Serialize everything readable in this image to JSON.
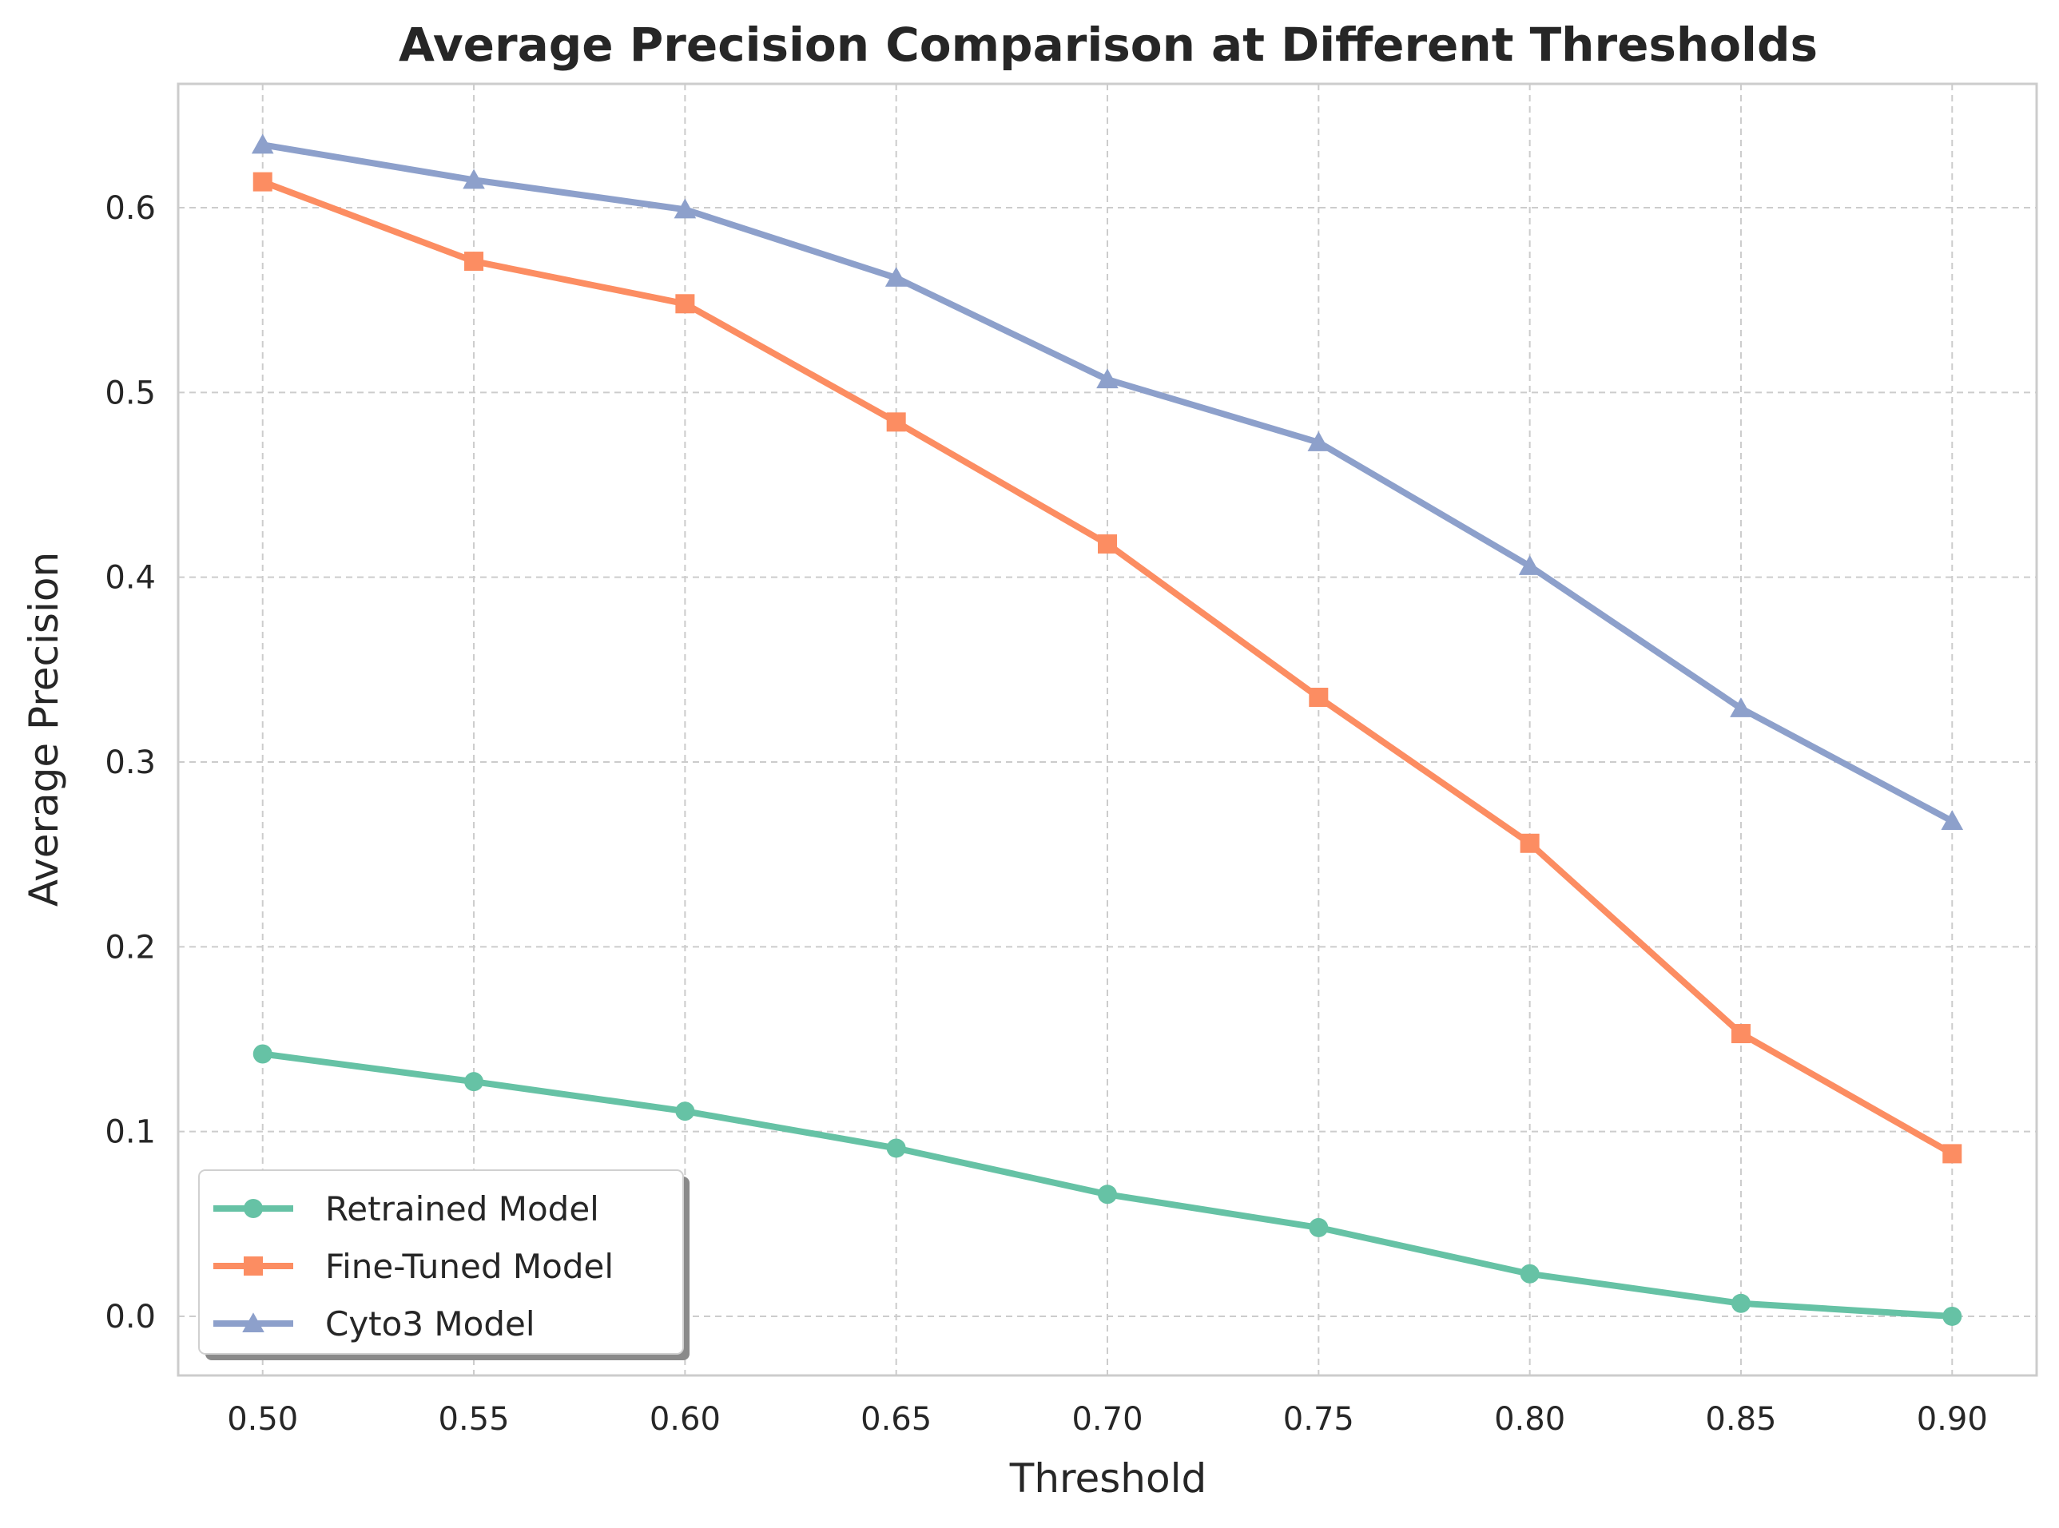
{
  "chart_data": {
    "type": "line",
    "title": "Average Precision Comparison at Different Thresholds",
    "xlabel": "Threshold",
    "ylabel": "Average Precision",
    "x": [
      0.5,
      0.55,
      0.6,
      0.65,
      0.7,
      0.75,
      0.8,
      0.85,
      0.9
    ],
    "xticks": [
      "0.50",
      "0.55",
      "0.60",
      "0.65",
      "0.70",
      "0.75",
      "0.80",
      "0.85",
      "0.90"
    ],
    "yticks": [
      "0.0",
      "0.1",
      "0.2",
      "0.3",
      "0.4",
      "0.5",
      "0.6"
    ],
    "xlim": [
      0.48,
      0.92
    ],
    "ylim": [
      -0.032,
      0.667
    ],
    "grid": true,
    "legend_position": "lower-left",
    "series": [
      {
        "name": "Retrained Model",
        "color": "#66c2a5",
        "marker": "circle",
        "values": [
          0.142,
          0.127,
          0.111,
          0.091,
          0.066,
          0.048,
          0.023,
          0.007,
          0.0
        ]
      },
      {
        "name": "Fine-Tuned Model",
        "color": "#fc8d62",
        "marker": "square",
        "values": [
          0.614,
          0.571,
          0.548,
          0.484,
          0.418,
          0.335,
          0.256,
          0.153,
          0.088
        ]
      },
      {
        "name": "Cyto3 Model",
        "color": "#8da0cb",
        "marker": "triangle",
        "values": [
          0.634,
          0.615,
          0.599,
          0.562,
          0.507,
          0.473,
          0.406,
          0.329,
          0.268
        ]
      }
    ]
  }
}
